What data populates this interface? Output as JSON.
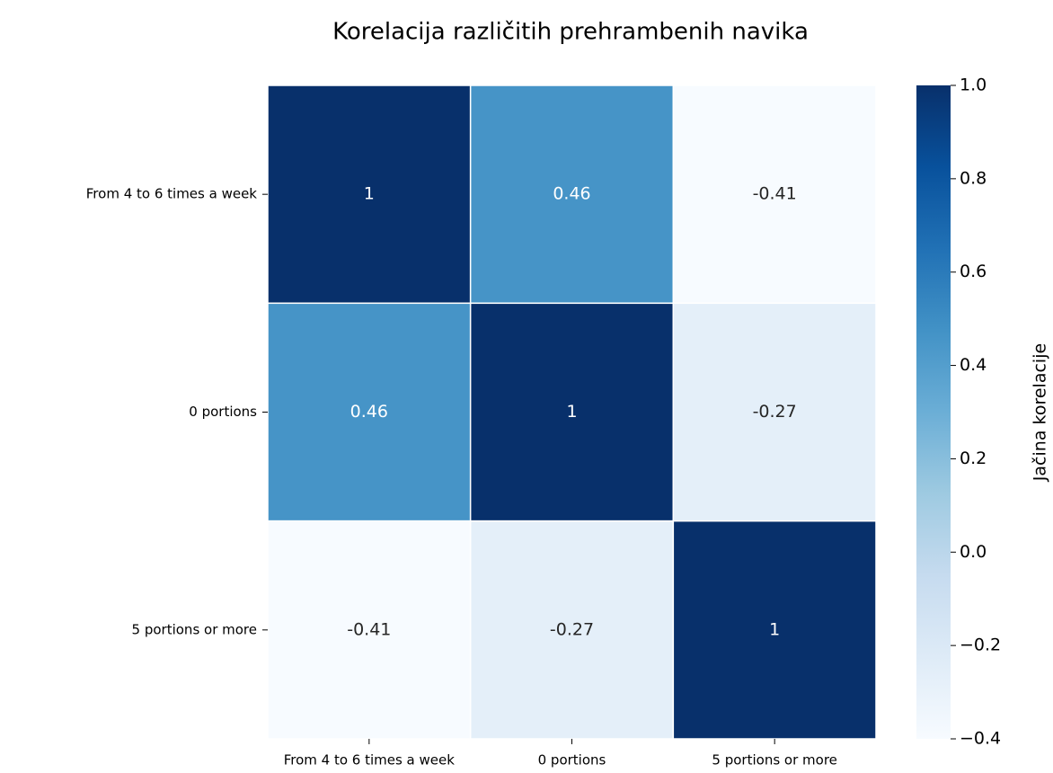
{
  "chart_data": {
    "type": "heatmap",
    "title": "Korelacija različitih prehrambenih navika",
    "x_categories": [
      "From 4 to 6 times a week",
      "0 portions",
      "5 portions or more"
    ],
    "y_categories": [
      "From 4 to 6 times a week",
      "0 portions",
      "5 portions or more"
    ],
    "values": [
      [
        1,
        0.46,
        -0.41
      ],
      [
        0.46,
        1,
        -0.27
      ],
      [
        -0.41,
        -0.27,
        1
      ]
    ],
    "zlim": [
      -0.4,
      1.0
    ],
    "zticks": [
      {
        "value": 1,
        "label": "1.0"
      },
      0.8,
      0.6,
      0.4,
      0.2,
      {
        "value": 0,
        "label": "0.0"
      },
      {
        "value": -0.2,
        "label": "−0.2"
      },
      {
        "value": -0.4,
        "label": "−0.4"
      }
    ],
    "colorbar_label": "Jačina korelacije",
    "colorscale": [
      "#f7fbff",
      "#deebf7",
      "#c6dbef",
      "#9ecae1",
      "#6baed6",
      "#4292c6",
      "#2171b5",
      "#08519c",
      "#08306b"
    ]
  }
}
